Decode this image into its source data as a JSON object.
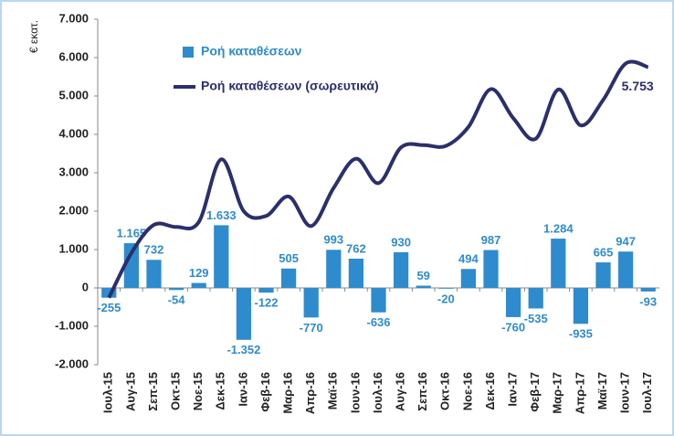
{
  "chart_data": {
    "type": "bar-line",
    "y_axis_label": "€ εκατ.",
    "categories": [
      "Ιουλ-15",
      "Αυγ-15",
      "Σεπ-15",
      "Οκτ-15",
      "Νοε-15",
      "Δεκ-15",
      "Ιαν-16",
      "Φεβ-16",
      "Μαρ-16",
      "Απρ-16",
      "Μαϊ-16",
      "Ιουν-16",
      "Ιουλ-16",
      "Αυγ-16",
      "Σεπ-16",
      "Οκτ-16",
      "Νοε-16",
      "Δεκ-16",
      "Ιαν-17",
      "Φεβ-17",
      "Μαρ-17",
      "Απρ-17",
      "Μαϊ-17",
      "Ιουν-17",
      "Ιουλ-17"
    ],
    "series": [
      {
        "name": "Ροή καταθέσεων",
        "type": "bar",
        "color": "#2e8bcd",
        "values": [
          -255,
          1165,
          732,
          -54,
          129,
          1633,
          -1352,
          -122,
          505,
          -770,
          993,
          762,
          -636,
          930,
          59,
          -20,
          494,
          987,
          -760,
          -535,
          1284,
          -935,
          665,
          947,
          -93
        ],
        "value_labels": [
          "-255",
          "1.165",
          "732",
          "-54",
          "129",
          "1.633",
          "-1.352",
          "-122",
          "505",
          "-770",
          "993",
          "762",
          "-636",
          "930",
          "59",
          "-20",
          "494",
          "987",
          "-760",
          "-535",
          "1.284",
          "-935",
          "665",
          "947",
          "-93"
        ]
      },
      {
        "name": "Ροή καταθέσεων (σωρευτικά)",
        "type": "line",
        "color": "#2b2f6b",
        "values": [
          -255,
          910,
          1642,
          1588,
          1717,
          3350,
          1998,
          1876,
          2381,
          1611,
          2604,
          3366,
          2730,
          3660,
          3719,
          3699,
          4193,
          5180,
          4420,
          3885,
          5169,
          4234,
          4899,
          5846,
          5753
        ],
        "value_labels": [
          null,
          null,
          null,
          null,
          null,
          null,
          null,
          null,
          null,
          null,
          null,
          null,
          null,
          null,
          null,
          null,
          null,
          null,
          null,
          null,
          null,
          null,
          null,
          null,
          "5.753"
        ]
      }
    ],
    "ylim": [
      -2000,
      7000
    ],
    "yticks": [
      {
        "value": -2000,
        "label": "-2.000"
      },
      {
        "value": -1000,
        "label": "-1.000"
      },
      0,
      {
        "value": 1000,
        "label": "1.000"
      },
      {
        "value": 2000,
        "label": "2.000"
      },
      {
        "value": 3000,
        "label": "3.000"
      },
      {
        "value": 4000,
        "label": "4.000"
      },
      {
        "value": 5000,
        "label": "5.000"
      },
      {
        "value": 6000,
        "label": "6.000"
      },
      {
        "value": 7000,
        "label": "7.000"
      }
    ],
    "legend": "top-left"
  }
}
